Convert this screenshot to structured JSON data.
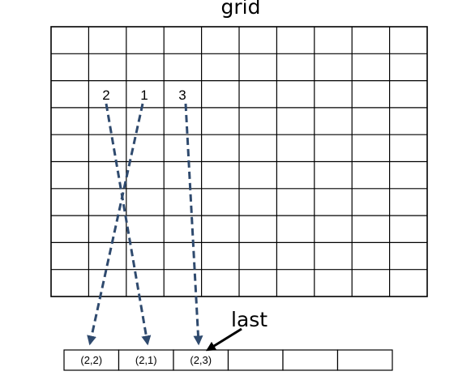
{
  "title": "grid",
  "grid": {
    "rows": 10,
    "cols": 10
  },
  "labels": [
    "2",
    "1",
    "3"
  ],
  "array_cells": [
    "(2,2)",
    "(2,1)",
    "(2,3)",
    "",
    "",
    ""
  ],
  "pointer_label": "last",
  "colors": {
    "dashed_arrow": "#2f4a6e",
    "lines": "#000000",
    "background": "#ffffff"
  }
}
